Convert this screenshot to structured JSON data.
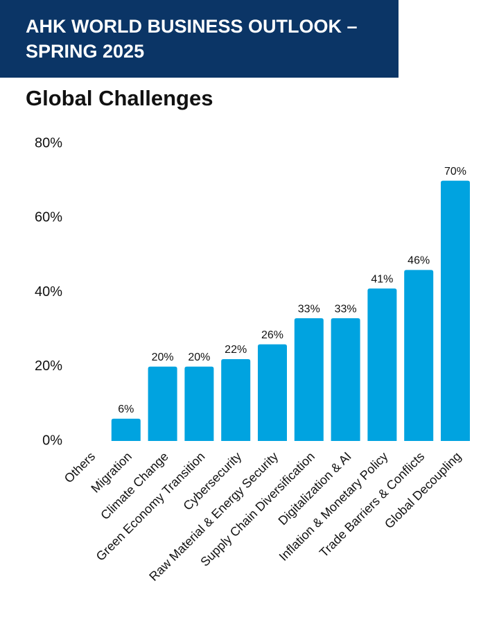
{
  "chart_data": {
    "type": "bar",
    "title": "AHK WORLD BUSINESS OUTLOOK – SPRING 2025",
    "subtitle": "Global Challenges",
    "categories": [
      "Others",
      "Migration",
      "Climate Change",
      "Green Economy Transition",
      "Cybersecurity",
      "Raw Material & Energy Security",
      "Supply Chain Diversification",
      "Digitalization & AI",
      "Inflation & Monetary Policy",
      "Trade Barriers & Conflicts",
      "Global Decoupling"
    ],
    "values": [
      null,
      6,
      20,
      20,
      22,
      26,
      33,
      33,
      41,
      46,
      70
    ],
    "value_labels": [
      null,
      "6%",
      "20%",
      "20%",
      "22%",
      "26%",
      "33%",
      "33%",
      "41%",
      "46%",
      "70%"
    ],
    "color": "#00a3e0",
    "ylim": [
      0,
      80
    ],
    "yticks": [
      {
        "value": 0,
        "label": "0%"
      },
      {
        "value": 20,
        "label": "20%"
      },
      {
        "value": 40,
        "label": "40%"
      },
      {
        "value": 60,
        "label": "60%"
      },
      {
        "value": 80,
        "label": "80%"
      }
    ],
    "grid": false
  }
}
